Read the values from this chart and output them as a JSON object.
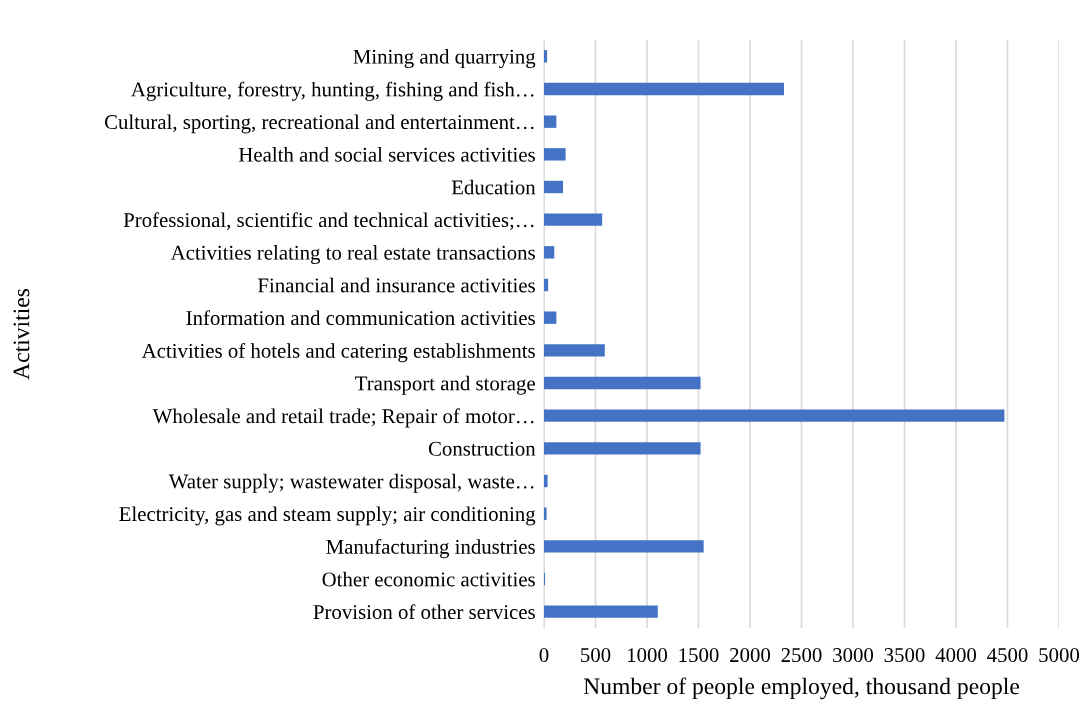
{
  "chart_data": {
    "type": "bar",
    "orientation": "horizontal",
    "xlabel": "Number of people employed, thousand people",
    "ylabel": "Activities",
    "categories": [
      "Mining and quarrying",
      "Agriculture, forestry, hunting, fishing and fish…",
      "Cultural, sporting, recreational and entertainment…",
      "Health and social services activities",
      "Education",
      "Professional, scientific and technical activities;…",
      "Activities relating to real estate transactions",
      "Financial and insurance activities",
      "Information and communication activities",
      "Activities of hotels and catering establishments",
      "Transport and storage",
      "Wholesale and retail trade; Repair of motor…",
      "Construction",
      "Water supply; wastewater disposal, waste…",
      "Electricity, gas and steam supply; air conditioning",
      "Manufacturing industries",
      "Other economic activities",
      "Provision of other services"
    ],
    "values": [
      30,
      2330,
      120,
      210,
      185,
      565,
      100,
      40,
      120,
      590,
      1520,
      4470,
      1520,
      35,
      25,
      1550,
      10,
      1105
    ],
    "color": "#4472c4",
    "xlim": [
      0,
      5000
    ],
    "xticks": [
      0,
      500,
      1000,
      1500,
      2000,
      2500,
      3000,
      3500,
      4000,
      4500,
      5000
    ],
    "grid": "x"
  }
}
